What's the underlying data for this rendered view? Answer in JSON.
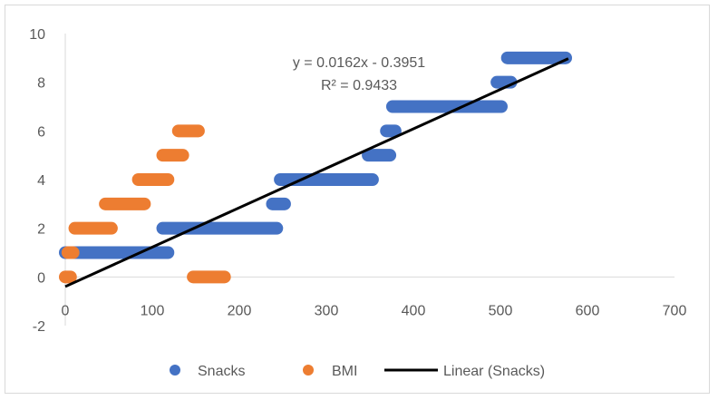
{
  "chart_data": {
    "type": "scatter",
    "xlim": [
      0,
      700
    ],
    "ylim": [
      -2,
      10
    ],
    "x_ticks": [
      "0",
      "100",
      "200",
      "300",
      "400",
      "500",
      "600",
      "700"
    ],
    "y_ticks": [
      "-2",
      "0",
      "2",
      "4",
      "6",
      "8",
      "10"
    ],
    "grid": {
      "horizontal": false,
      "vertical": false
    },
    "legend_position": "bottom",
    "series": [
      {
        "name": "Snacks",
        "color": "#4472c4",
        "marker": "circle",
        "segments": [
          {
            "y": 1,
            "x_start": 0,
            "x_end": 118
          },
          {
            "y": 2,
            "x_start": 112,
            "x_end": 243
          },
          {
            "y": 3,
            "x_start": 238,
            "x_end": 252
          },
          {
            "y": 4,
            "x_start": 247,
            "x_end": 353
          },
          {
            "y": 5,
            "x_start": 348,
            "x_end": 373
          },
          {
            "y": 6,
            "x_start": 369,
            "x_end": 379
          },
          {
            "y": 7,
            "x_start": 376,
            "x_end": 501
          },
          {
            "y": 8,
            "x_start": 496,
            "x_end": 512
          },
          {
            "y": 9,
            "x_start": 508,
            "x_end": 575
          }
        ]
      },
      {
        "name": "BMI",
        "color": "#ed7d31",
        "marker": "circle",
        "segments": [
          {
            "y": 0,
            "x_start": 0,
            "x_end": 6
          },
          {
            "y": 1,
            "x_start": 3,
            "x_end": 9
          },
          {
            "y": 2,
            "x_start": 11,
            "x_end": 53
          },
          {
            "y": 3,
            "x_start": 46,
            "x_end": 91
          },
          {
            "y": 4,
            "x_start": 84,
            "x_end": 118
          },
          {
            "y": 5,
            "x_start": 112,
            "x_end": 135
          },
          {
            "y": 6,
            "x_start": 130,
            "x_end": 153
          },
          {
            "y": 0,
            "x_start": 147,
            "x_end": 183
          }
        ]
      }
    ],
    "trendline": {
      "name": "Linear (Snacks)",
      "color": "#000000",
      "slope": 0.0162,
      "intercept": -0.3951,
      "x_range": [
        0,
        578
      ],
      "equation": "y = 0.0162x - 0.3951",
      "r_squared": "R² = 0.9433"
    }
  }
}
